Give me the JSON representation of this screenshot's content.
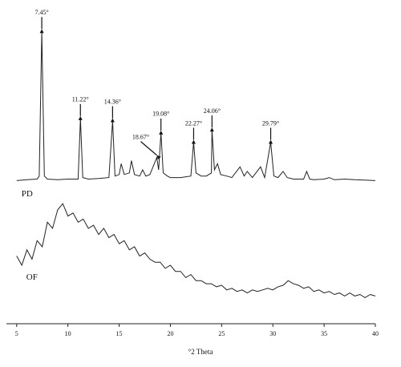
{
  "chart_data": {
    "type": "line",
    "xlabel": "°2 Theta",
    "xlim": [
      4,
      40
    ],
    "xticks": [
      5,
      10,
      15,
      20,
      25,
      30,
      35,
      40
    ],
    "ylim": [
      0,
      100
    ],
    "series": [
      {
        "name": "PD",
        "color": "#222222",
        "x": [
          5,
          6,
          7,
          7.2,
          7.45,
          7.7,
          8,
          9,
          10,
          11,
          11.22,
          11.45,
          12,
          13,
          14,
          14.36,
          14.6,
          15,
          15.2,
          15.5,
          16,
          16.2,
          16.5,
          17,
          17.3,
          17.6,
          18,
          18.67,
          18.85,
          19.08,
          19.3,
          19.7,
          20,
          21,
          22,
          22.27,
          22.5,
          23,
          23.5,
          24,
          24.06,
          24.3,
          24.6,
          24.9,
          25.5,
          26,
          26.8,
          27.2,
          27.5,
          28,
          28.8,
          29.2,
          29.79,
          30.1,
          30.5,
          31,
          31.4,
          32,
          33,
          33.3,
          33.6,
          34,
          35,
          35.5,
          36,
          37,
          38,
          39,
          40
        ],
        "values": [
          46.5,
          46.8,
          47,
          48,
          95,
          48,
          47,
          46.8,
          47,
          47,
          66.7,
          47.5,
          47,
          47.2,
          47.5,
          66,
          48,
          48.5,
          52,
          48.5,
          49,
          53,
          48.5,
          48,
          50,
          48,
          48.5,
          54,
          50,
          62,
          49,
          48,
          47.5,
          47.5,
          48,
          59,
          49,
          48,
          48,
          49,
          63,
          50,
          52,
          48.5,
          48,
          47.5,
          51,
          48,
          49.5,
          47.5,
          51,
          47.5,
          59,
          48,
          47.5,
          49.5,
          47.5,
          47,
          47,
          49.5,
          47,
          46.8,
          47,
          47.5,
          46.8,
          47,
          46.8,
          46.7,
          46.5
        ]
      },
      {
        "name": "OF",
        "color": "#222222",
        "x": [
          5,
          5.5,
          6,
          6.5,
          7,
          7.5,
          8,
          8.5,
          9,
          9.5,
          10,
          10.5,
          11,
          11.5,
          12,
          12.5,
          13,
          13.5,
          14,
          14.5,
          15,
          15.5,
          16,
          16.5,
          17,
          17.5,
          18,
          18.5,
          19,
          19.5,
          20,
          20.5,
          21,
          21.5,
          22,
          22.5,
          23,
          23.5,
          24,
          24.5,
          25,
          25.5,
          26,
          26.5,
          27,
          27.5,
          28,
          28.5,
          29,
          29.5,
          30,
          30.5,
          31,
          31.5,
          32,
          32.5,
          33,
          33.5,
          34,
          34.5,
          35,
          35.5,
          36,
          36.5,
          37,
          37.5,
          38,
          38.5,
          39,
          39.5,
          40
        ],
        "values": [
          22,
          19,
          24,
          21,
          27,
          25,
          33,
          31,
          37,
          39,
          35,
          36,
          33,
          34,
          31,
          32,
          29,
          31,
          28,
          29,
          26,
          27,
          24,
          25,
          22,
          23,
          21,
          20,
          20,
          18,
          19,
          17,
          17,
          15,
          16,
          14,
          14,
          13,
          13,
          12,
          12.5,
          11,
          11.5,
          10.5,
          11,
          10,
          11,
          10.5,
          11,
          11.5,
          11,
          12,
          12.5,
          14,
          13,
          12.5,
          11.5,
          12,
          10.5,
          11,
          10,
          10.5,
          9.5,
          10,
          9,
          10,
          9,
          9.5,
          8.5,
          9.5,
          9
        ]
      }
    ],
    "annotations": [
      {
        "text": "7.45°",
        "x": 7.45
      },
      {
        "text": "11.22°",
        "x": 11.22
      },
      {
        "text": "14.36°",
        "x": 14.36
      },
      {
        "text": "18.67°",
        "x": 18.67
      },
      {
        "text": "19.08°",
        "x": 19.08
      },
      {
        "text": "22.27°",
        "x": 22.27
      },
      {
        "text": "24.06°",
        "x": 24.06
      },
      {
        "text": "29.79°",
        "x": 29.79
      }
    ]
  }
}
